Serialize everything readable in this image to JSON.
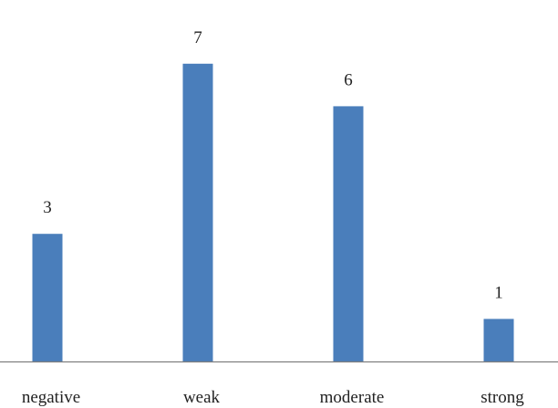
{
  "chart_data": {
    "type": "bar",
    "categories": [
      "negative",
      "weak",
      "moderate",
      "strong"
    ],
    "values": [
      3,
      7,
      6,
      1
    ],
    "data_labels": [
      "3",
      "7",
      "6",
      "1"
    ],
    "title": "",
    "xlabel": "",
    "ylabel": "",
    "ylim": [
      0,
      8
    ],
    "grid": false,
    "legend": "none",
    "bar_color": "#4a7ebb",
    "axis_color": "#7f7f7f"
  }
}
